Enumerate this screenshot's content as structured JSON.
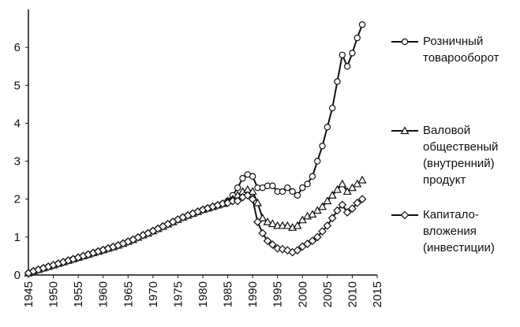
{
  "chart_data": {
    "type": "line",
    "x": [
      1945,
      1946,
      1947,
      1948,
      1949,
      1950,
      1951,
      1952,
      1953,
      1954,
      1955,
      1956,
      1957,
      1958,
      1959,
      1960,
      1961,
      1962,
      1963,
      1964,
      1965,
      1966,
      1967,
      1968,
      1969,
      1970,
      1971,
      1972,
      1973,
      1974,
      1975,
      1976,
      1977,
      1978,
      1979,
      1980,
      1981,
      1982,
      1983,
      1984,
      1985,
      1986,
      1987,
      1988,
      1989,
      1990,
      1991,
      1992,
      1993,
      1994,
      1995,
      1996,
      1997,
      1998,
      1999,
      2000,
      2001,
      2002,
      2003,
      2004,
      2005,
      2006,
      2007,
      2008,
      2009,
      2010,
      2011,
      2012
    ],
    "series": [
      {
        "name": "Розничный товарооборот",
        "color": "#111111",
        "marker": "circle",
        "values": [
          0.05,
          0.1,
          0.14,
          0.18,
          0.22,
          0.26,
          0.3,
          0.34,
          0.38,
          0.42,
          0.46,
          0.5,
          0.54,
          0.58,
          0.62,
          0.66,
          0.7,
          0.74,
          0.78,
          0.83,
          0.88,
          0.93,
          0.99,
          1.05,
          1.1,
          1.16,
          1.22,
          1.28,
          1.34,
          1.4,
          1.46,
          1.52,
          1.57,
          1.62,
          1.67,
          1.72,
          1.76,
          1.8,
          1.84,
          1.88,
          1.95,
          2.1,
          2.3,
          2.55,
          2.65,
          2.6,
          2.3,
          2.3,
          2.35,
          2.35,
          2.2,
          2.2,
          2.3,
          2.2,
          2.1,
          2.3,
          2.4,
          2.6,
          3.0,
          3.4,
          3.9,
          4.4,
          5.1,
          5.8,
          5.5,
          5.85,
          6.25,
          6.6
        ]
      },
      {
        "name": "Валовой общественый (внутренний) продукт",
        "color": "#111111",
        "marker": "triangle",
        "values": [
          0.05,
          0.1,
          0.14,
          0.18,
          0.22,
          0.26,
          0.3,
          0.34,
          0.38,
          0.42,
          0.46,
          0.5,
          0.54,
          0.58,
          0.62,
          0.66,
          0.7,
          0.74,
          0.78,
          0.83,
          0.88,
          0.93,
          0.99,
          1.05,
          1.1,
          1.16,
          1.22,
          1.28,
          1.34,
          1.4,
          1.46,
          1.52,
          1.57,
          1.62,
          1.67,
          1.72,
          1.76,
          1.8,
          1.84,
          1.88,
          1.95,
          2.0,
          2.1,
          2.2,
          2.25,
          2.2,
          1.9,
          1.5,
          1.4,
          1.35,
          1.3,
          1.3,
          1.3,
          1.25,
          1.3,
          1.45,
          1.55,
          1.6,
          1.7,
          1.8,
          1.95,
          2.1,
          2.25,
          2.4,
          2.2,
          2.3,
          2.4,
          2.5
        ]
      },
      {
        "name": "Капитало-вложения (инвестиции)",
        "color": "#111111",
        "marker": "diamond",
        "values": [
          0.05,
          0.1,
          0.14,
          0.18,
          0.22,
          0.26,
          0.3,
          0.34,
          0.38,
          0.42,
          0.46,
          0.5,
          0.54,
          0.58,
          0.62,
          0.66,
          0.7,
          0.74,
          0.78,
          0.83,
          0.88,
          0.93,
          0.99,
          1.05,
          1.1,
          1.16,
          1.22,
          1.28,
          1.34,
          1.4,
          1.46,
          1.52,
          1.57,
          1.62,
          1.67,
          1.72,
          1.76,
          1.8,
          1.84,
          1.88,
          1.9,
          1.95,
          1.95,
          2.05,
          2.1,
          2.0,
          1.4,
          1.1,
          0.9,
          0.8,
          0.7,
          0.68,
          0.65,
          0.6,
          0.65,
          0.75,
          0.82,
          0.9,
          1.0,
          1.15,
          1.3,
          1.5,
          1.7,
          1.85,
          1.65,
          1.75,
          1.9,
          2.0
        ]
      }
    ],
    "xlim": [
      1945,
      2015
    ],
    "xticks": [
      1945,
      1950,
      1955,
      1960,
      1965,
      1970,
      1975,
      1980,
      1985,
      1990,
      1995,
      2000,
      2005,
      2010,
      2015
    ],
    "ylim": [
      0,
      7
    ],
    "yticks": [
      0,
      1,
      2,
      3,
      4,
      5,
      6
    ],
    "legend": "right"
  }
}
